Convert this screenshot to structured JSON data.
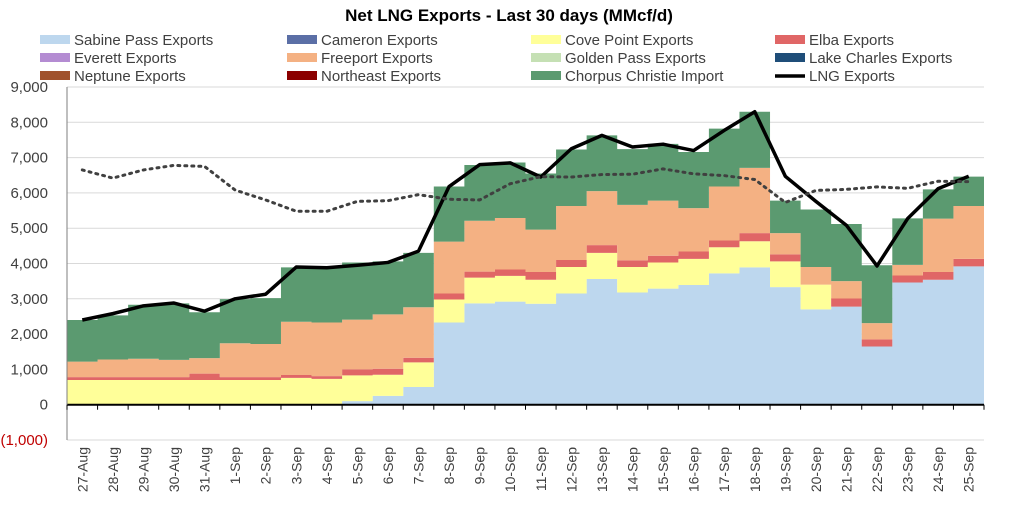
{
  "chart_data": {
    "type": "area",
    "title": "Net LNG Exports - Last 30 days (MMcf/d)",
    "xlabel": "",
    "ylabel": "",
    "ylim": [
      -1000,
      9000
    ],
    "yticks": [
      -1000,
      0,
      1000,
      2000,
      3000,
      4000,
      5000,
      6000,
      7000,
      8000,
      9000
    ],
    "ytick_labels": [
      "(1,000)",
      "0",
      "1,000",
      "2,000",
      "3,000",
      "4,000",
      "5,000",
      "6,000",
      "7,000",
      "8,000",
      "9,000"
    ],
    "grid": "horizontal",
    "legend_position": "top",
    "categories": [
      "27-Aug",
      "28-Aug",
      "29-Aug",
      "30-Aug",
      "31-Aug",
      "1-Sep",
      "2-Sep",
      "3-Sep",
      "4-Sep",
      "5-Sep",
      "6-Sep",
      "7-Sep",
      "8-Sep",
      "9-Sep",
      "10-Sep",
      "11-Sep",
      "12-Sep",
      "13-Sep",
      "14-Sep",
      "15-Sep",
      "16-Sep",
      "17-Sep",
      "18-Sep",
      "19-Sep",
      "20-Sep",
      "21-Sep",
      "22-Sep",
      "23-Sep",
      "24-Sep",
      "25-Sep"
    ],
    "series": [
      {
        "name": "Sabine Pass Exports",
        "color": "#bdd7ee",
        "kind": "stacked-area",
        "values": [
          0,
          0,
          0,
          0,
          0,
          0,
          0,
          0,
          0,
          100,
          250,
          500,
          2330,
          2870,
          2920,
          2860,
          3150,
          3560,
          3180,
          3290,
          3390,
          3720,
          3890,
          3330,
          2700,
          2780,
          1650,
          3460,
          3540,
          3920
        ]
      },
      {
        "name": "Cameron Exports",
        "color": "#5b6fa6",
        "kind": "stacked-area",
        "values": [
          0,
          0,
          0,
          0,
          0,
          0,
          0,
          0,
          0,
          0,
          0,
          0,
          0,
          0,
          0,
          0,
          0,
          0,
          0,
          0,
          0,
          0,
          0,
          0,
          0,
          0,
          0,
          0,
          0,
          0
        ]
      },
      {
        "name": "Cove Point Exports",
        "color": "#ffff99",
        "kind": "stacked-area",
        "values": [
          700,
          700,
          700,
          700,
          700,
          700,
          700,
          760,
          730,
          730,
          600,
          700,
          650,
          730,
          730,
          680,
          750,
          740,
          720,
          740,
          740,
          740,
          740,
          730,
          700,
          0,
          0,
          0,
          0,
          0
        ]
      },
      {
        "name": "Elba Exports",
        "color": "#e06666",
        "kind": "stacked-area",
        "values": [
          80,
          80,
          80,
          80,
          180,
          80,
          80,
          80,
          80,
          170,
          170,
          130,
          170,
          170,
          180,
          220,
          200,
          220,
          190,
          190,
          210,
          190,
          230,
          200,
          0,
          230,
          200,
          200,
          220,
          210
        ]
      },
      {
        "name": "Everett Exports",
        "color": "#b48cd2",
        "kind": "stacked-area",
        "values": [
          0,
          0,
          0,
          0,
          0,
          0,
          0,
          0,
          0,
          0,
          0,
          0,
          0,
          0,
          0,
          0,
          0,
          0,
          0,
          0,
          0,
          0,
          0,
          0,
          0,
          0,
          0,
          0,
          0,
          0
        ]
      },
      {
        "name": "Freeport Exports",
        "color": "#f4b183",
        "kind": "stacked-area",
        "values": [
          440,
          500,
          520,
          490,
          440,
          960,
          940,
          1510,
          1520,
          1410,
          1540,
          1430,
          1470,
          1440,
          1460,
          1200,
          1530,
          1530,
          1570,
          1560,
          1230,
          1530,
          1850,
          600,
          500,
          490,
          460,
          300,
          1510,
          1500
        ]
      },
      {
        "name": "Golden Pass Exports",
        "color": "#c5e0b4",
        "kind": "stacked-area",
        "values": [
          0,
          0,
          0,
          0,
          0,
          0,
          0,
          0,
          0,
          0,
          0,
          0,
          0,
          0,
          0,
          0,
          0,
          0,
          0,
          0,
          0,
          0,
          0,
          0,
          0,
          0,
          0,
          0,
          0,
          0
        ]
      },
      {
        "name": "Lake Charles Exports",
        "color": "#1f4e79",
        "kind": "stacked-area",
        "values": [
          0,
          0,
          0,
          0,
          0,
          0,
          0,
          0,
          0,
          0,
          0,
          0,
          0,
          0,
          0,
          0,
          0,
          0,
          0,
          0,
          0,
          0,
          0,
          0,
          0,
          0,
          0,
          0,
          0,
          0
        ]
      },
      {
        "name": "Neptune Exports",
        "color": "#a0522d",
        "kind": "stacked-area",
        "values": [
          0,
          0,
          0,
          0,
          0,
          0,
          0,
          0,
          0,
          0,
          0,
          0,
          0,
          0,
          0,
          0,
          0,
          0,
          0,
          0,
          0,
          0,
          0,
          0,
          0,
          0,
          0,
          0,
          0,
          0
        ]
      },
      {
        "name": "Northeast Exports",
        "color": "#8b0000",
        "kind": "stacked-area",
        "values": [
          0,
          0,
          0,
          0,
          0,
          0,
          0,
          0,
          0,
          0,
          0,
          0,
          0,
          0,
          0,
          0,
          0,
          0,
          0,
          0,
          0,
          0,
          0,
          0,
          0,
          0,
          0,
          0,
          0,
          0
        ]
      },
      {
        "name": "Chorpus Christie Import",
        "color": "#5b9a70",
        "kind": "stacked-area",
        "values": [
          1180,
          1250,
          1530,
          1600,
          1300,
          1250,
          1300,
          1540,
          1560,
          1620,
          1500,
          1540,
          1560,
          1580,
          1570,
          1590,
          1600,
          1580,
          1580,
          1610,
          1590,
          1640,
          1590,
          920,
          1630,
          1620,
          1640,
          1320,
          830,
          830
        ]
      },
      {
        "name": "LNG Exports",
        "color": "#000000",
        "kind": "line",
        "values": [
          2400,
          2580,
          2800,
          2880,
          2650,
          3000,
          3130,
          3900,
          3880,
          3950,
          4030,
          4350,
          6180,
          6800,
          6850,
          6450,
          7250,
          7630,
          7300,
          7380,
          7200,
          7770,
          8300,
          6470,
          5760,
          5080,
          3930,
          5270,
          6120,
          6470
        ]
      },
      {
        "name": "",
        "color": "#404040",
        "kind": "dotted-line",
        "values": [
          6650,
          6420,
          6650,
          6780,
          6750,
          6080,
          5800,
          5480,
          5480,
          5760,
          5780,
          5950,
          5820,
          5800,
          6260,
          6460,
          6450,
          6520,
          6530,
          6680,
          6540,
          6490,
          6380,
          5730,
          6070,
          6100,
          6170,
          6130,
          6330,
          6320
        ]
      }
    ]
  }
}
